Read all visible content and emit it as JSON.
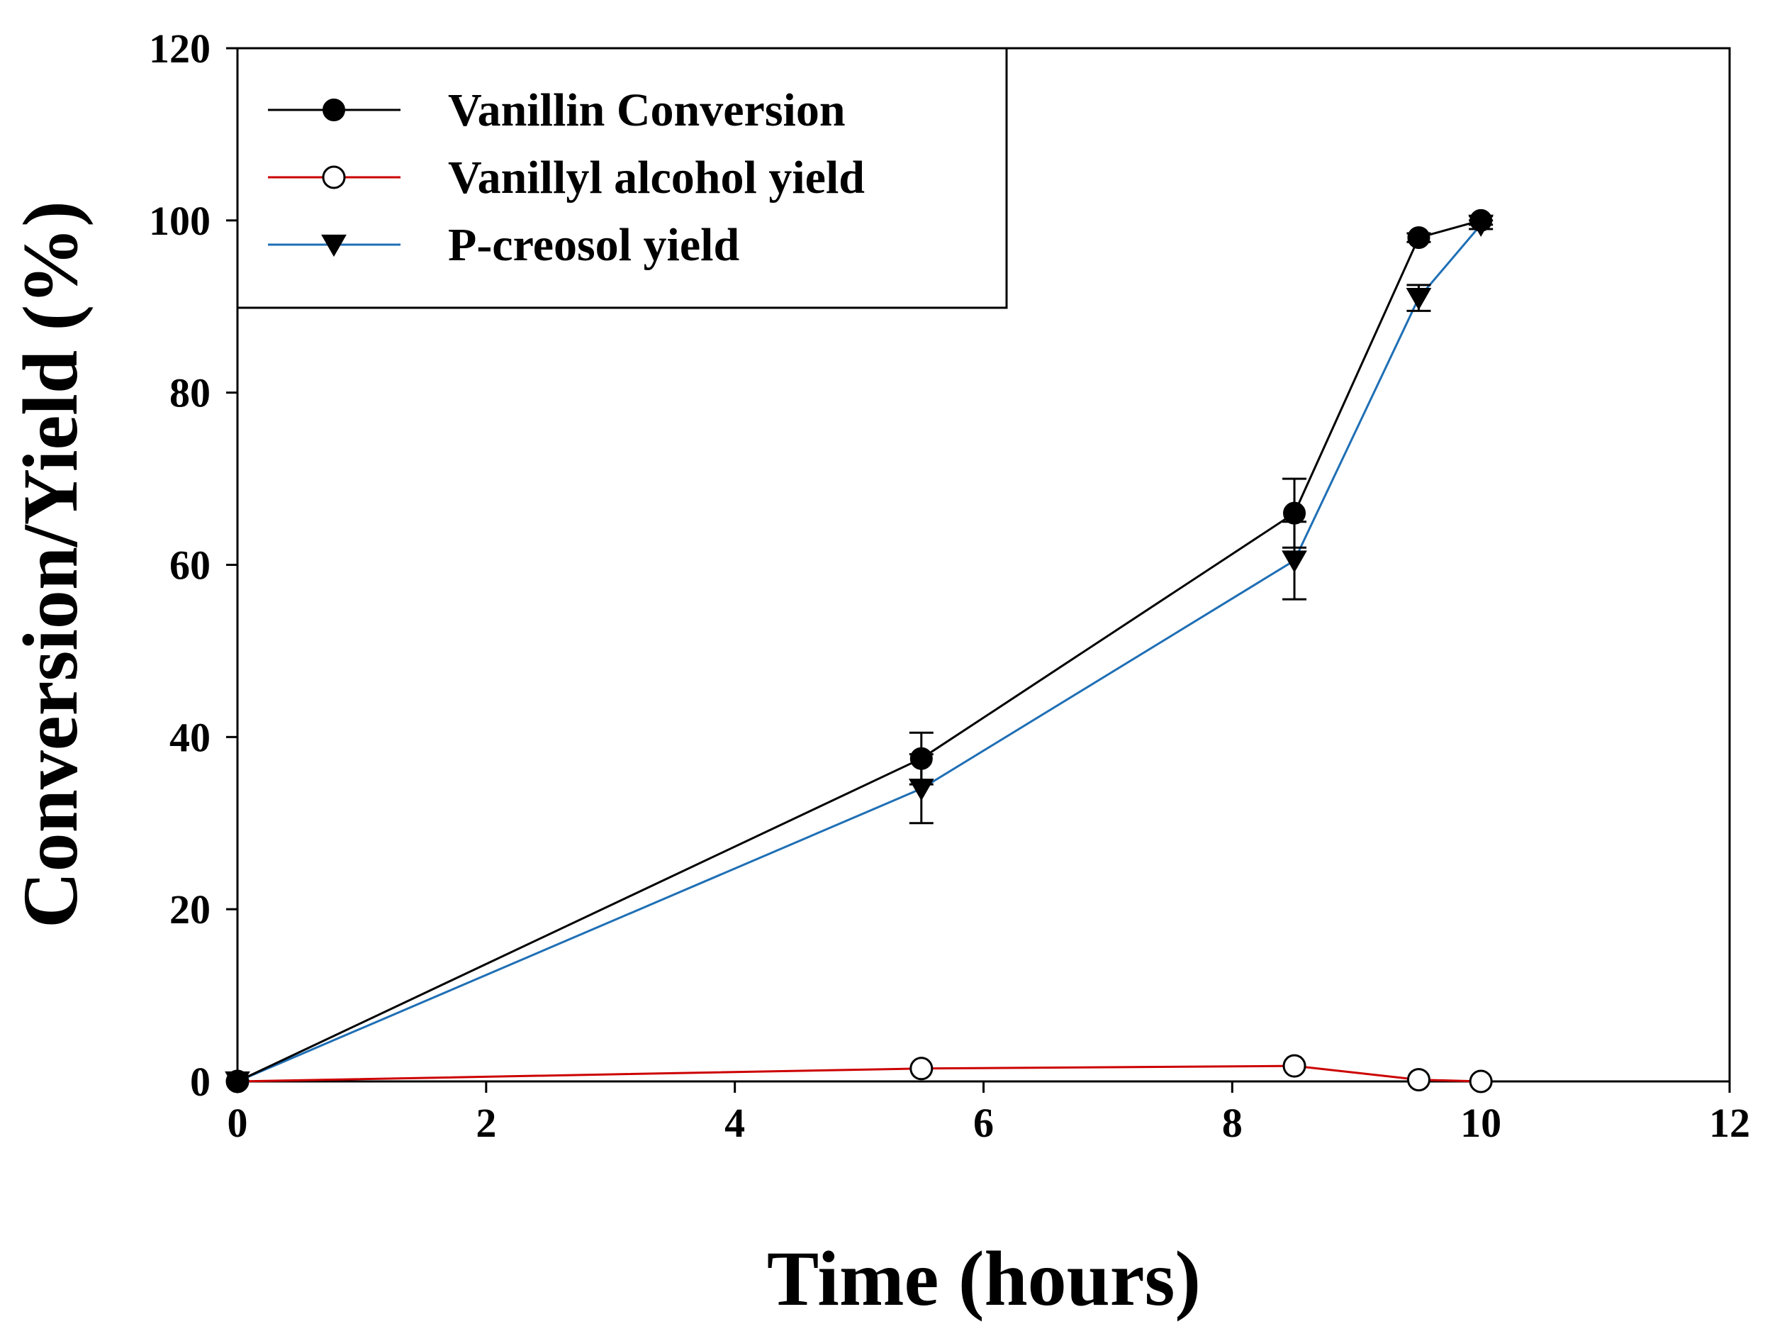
{
  "chart_data": {
    "type": "line",
    "xlabel": "Time (hours)",
    "ylabel": "Conversion/Yield (%)",
    "xlim": [
      0,
      12
    ],
    "ylim": [
      0,
      120
    ],
    "x_ticks": [
      0,
      2,
      4,
      6,
      8,
      10,
      12
    ],
    "y_ticks": [
      0,
      20,
      40,
      60,
      80,
      100,
      120
    ],
    "grid": false,
    "legend_position": "top-left",
    "series": [
      {
        "name": "Vanillin Conversion",
        "color": "#000000",
        "marker": "filled-circle",
        "x": [
          0,
          5.5,
          8.5,
          9.5,
          10
        ],
        "y": [
          0,
          37.5,
          66,
          98,
          100
        ],
        "error": [
          0,
          3,
          4,
          0.5,
          0.5
        ]
      },
      {
        "name": "Vanillyl alcohol yield",
        "color": "#cc0000",
        "marker": "open-circle",
        "x": [
          0,
          5.5,
          8.5,
          9.5,
          10
        ],
        "y": [
          0,
          1.5,
          1.8,
          0.2,
          0
        ],
        "error": [
          0,
          0,
          0,
          0,
          0
        ]
      },
      {
        "name": "P-creosol yield",
        "color": "#1f6fb5",
        "marker": "filled-triangle-down",
        "x": [
          0,
          5.5,
          8.5,
          9.5,
          10
        ],
        "y": [
          0,
          34,
          60.5,
          91,
          99.5
        ],
        "error": [
          0,
          4,
          4.5,
          1.5,
          0.5
        ]
      }
    ]
  }
}
